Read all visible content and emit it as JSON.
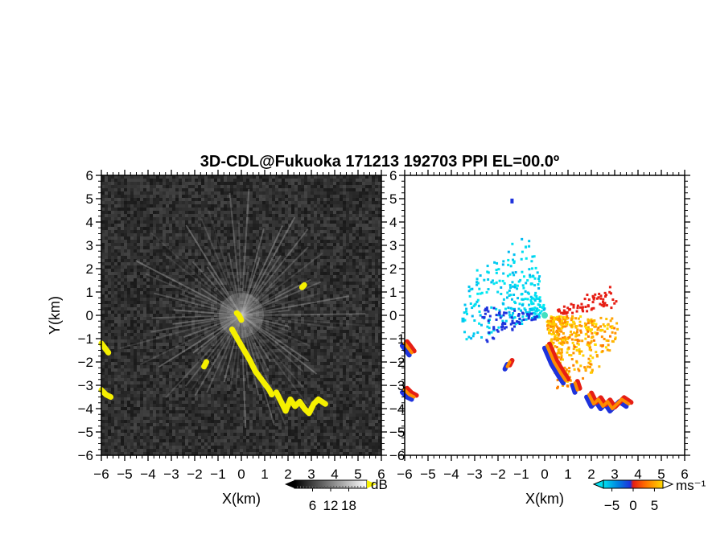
{
  "title": "3D-CDL@Fukuoka 171213 192703 PPI EL=00.0º",
  "colors": {
    "reflectivity_background": "#2e2e2e",
    "reflectivity_rays": "#c8c8c8",
    "reflectivity_echo": "#f5f000",
    "velocity_background": "#ffffff"
  },
  "chart_data": [
    {
      "type": "heatmap",
      "panel": "left",
      "xlabel": "X(km)",
      "ylabel": "Y(km)",
      "xlim": [
        -6,
        6
      ],
      "ylim": [
        -6,
        6
      ],
      "xticks": [
        "-6",
        "-5",
        "-4",
        "-3",
        "-2",
        "-1",
        "0",
        "1",
        "2",
        "3",
        "4",
        "5",
        "6"
      ],
      "yticks": [
        "-6",
        "-5",
        "-4",
        "-3",
        "-2",
        "-1",
        "0",
        "1",
        "2",
        "3",
        "4",
        "5",
        "6"
      ],
      "colorbar": {
        "unit": "dB",
        "ticks": [
          "6",
          "12",
          "18"
        ],
        "range": [
          0,
          24
        ]
      },
      "echo_segments": [
        {
          "x": [
            -0.4,
            0.0,
            0.35,
            0.6,
            0.9,
            1.2,
            1.3
          ],
          "y": [
            -0.6,
            -1.3,
            -1.9,
            -2.4,
            -2.8,
            -3.2,
            -3.4
          ]
        },
        {
          "x": [
            1.5,
            1.7,
            1.9,
            2.1,
            2.3,
            2.5,
            2.7,
            2.9,
            3.1,
            3.3,
            3.6
          ],
          "y": [
            -3.3,
            -3.7,
            -4.1,
            -3.6,
            -3.9,
            -3.7,
            -4.0,
            -4.2,
            -3.8,
            -3.6,
            -3.8
          ]
        },
        {
          "x": [
            -6.0,
            -5.85,
            -5.7
          ],
          "y": [
            -1.2,
            -1.4,
            -1.6
          ]
        },
        {
          "x": [
            -6.0,
            -5.8,
            -5.6
          ],
          "y": [
            -3.2,
            -3.4,
            -3.5
          ]
        },
        {
          "x": [
            -1.5,
            -1.6
          ],
          "y": [
            -2.0,
            -2.2
          ]
        },
        {
          "x": [
            -0.2,
            -0.1,
            0.0
          ],
          "y": [
            0.1,
            0.0,
            -0.2
          ]
        },
        {
          "x": [
            2.6,
            2.7
          ],
          "y": [
            1.2,
            1.3
          ]
        }
      ]
    },
    {
      "type": "heatmap",
      "panel": "right",
      "xlabel": "X(km)",
      "xlim": [
        -6,
        6
      ],
      "ylim": [
        -6,
        6
      ],
      "xticks": [
        "-6",
        "-5",
        "-4",
        "-3",
        "-2",
        "-1",
        "0",
        "1",
        "2",
        "3",
        "4",
        "5",
        "6"
      ],
      "yticks": [
        "-6",
        "-5",
        "-4",
        "-3",
        "-2",
        "-1",
        "0",
        "1",
        "2",
        "3",
        "4",
        "5",
        "6"
      ],
      "colorbar": {
        "unit": "ms⁻¹",
        "ticks": [
          "-5",
          "0",
          "5"
        ],
        "range": [
          -7,
          7
        ]
      },
      "approaching_color": "#00c8f0",
      "receding_color": "#ff8c00",
      "edge_negative_color": "#1e32dc",
      "edge_positive_color": "#e61e14",
      "points": [
        {
          "x": -1.4,
          "y": 4.9,
          "v": -7
        },
        {
          "x": -3.5,
          "y": -0.2,
          "v": -4
        }
      ],
      "echo_segments": [
        {
          "x": [
            0.1,
            0.4,
            0.7,
            0.9
          ],
          "y": [
            -1.3,
            -2.0,
            -2.5,
            -2.8
          ],
          "v": 3
        },
        {
          "x": [
            1.3,
            1.4
          ],
          "y": [
            -2.9,
            -3.2
          ],
          "v": 2
        },
        {
          "x": [
            1.9,
            2.1,
            2.3,
            2.5,
            2.7,
            2.9,
            3.1,
            3.3,
            3.6
          ],
          "y": [
            -3.4,
            -3.8,
            -3.6,
            -3.9,
            -3.7,
            -4.0,
            -3.8,
            -3.6,
            -3.8
          ],
          "v": 5
        },
        {
          "x": [
            -6.0,
            -5.85,
            -5.7
          ],
          "y": [
            -1.2,
            -1.4,
            -1.6
          ],
          "v": 6
        },
        {
          "x": [
            -6.0,
            -5.8,
            -5.6
          ],
          "y": [
            -3.2,
            -3.4,
            -3.5
          ],
          "v": 6
        },
        {
          "x": [
            -1.5,
            -1.6
          ],
          "y": [
            -2.0,
            -2.2
          ],
          "v": 3
        }
      ]
    }
  ]
}
